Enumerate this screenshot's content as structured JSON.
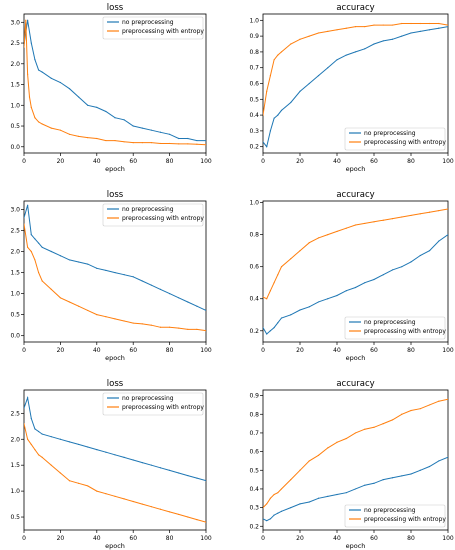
{
  "colors": {
    "no_preprocessing": "#1f77b4",
    "preprocessing_with_entropy": "#ff7f0e"
  },
  "chart_data": [
    {
      "type": "line",
      "title": "loss",
      "xlabel": "epoch",
      "ylabel": "",
      "xlim": [
        0,
        100
      ],
      "ylim": [
        -0.15,
        3.2
      ],
      "xticks": [
        0,
        20,
        40,
        60,
        80,
        100
      ],
      "yticks": [
        0.0,
        0.5,
        1.0,
        1.5,
        2.0,
        2.5,
        3.0
      ],
      "ytick_labels": [
        "0.0",
        "0.5",
        "1.0",
        "1.5",
        "2.0",
        "2.5",
        "3.0"
      ],
      "legend": "top-right",
      "series": [
        {
          "name": "no preprocessing",
          "color": "#1f77b4",
          "x": [
            0,
            2,
            4,
            6,
            8,
            10,
            15,
            20,
            25,
            30,
            35,
            40,
            45,
            50,
            55,
            60,
            65,
            70,
            75,
            80,
            85,
            90,
            95,
            100
          ],
          "y": [
            2.45,
            3.05,
            2.5,
            2.1,
            1.85,
            1.8,
            1.65,
            1.55,
            1.4,
            1.2,
            1.0,
            0.95,
            0.85,
            0.7,
            0.65,
            0.5,
            0.45,
            0.4,
            0.35,
            0.3,
            0.2,
            0.2,
            0.15,
            0.15
          ]
        },
        {
          "name": "preprocessing with entropy",
          "color": "#ff7f0e",
          "x": [
            0,
            1,
            2,
            3,
            4,
            6,
            8,
            10,
            15,
            20,
            25,
            30,
            35,
            40,
            45,
            50,
            55,
            60,
            65,
            70,
            75,
            80,
            85,
            90,
            95,
            100
          ],
          "y": [
            2.4,
            3.05,
            1.75,
            1.2,
            0.95,
            0.7,
            0.6,
            0.55,
            0.45,
            0.4,
            0.3,
            0.25,
            0.22,
            0.2,
            0.15,
            0.15,
            0.12,
            0.1,
            0.1,
            0.1,
            0.08,
            0.08,
            0.07,
            0.07,
            0.06,
            0.05
          ]
        }
      ]
    },
    {
      "type": "line",
      "title": "accuracy",
      "xlabel": "epoch",
      "ylabel": "",
      "xlim": [
        0,
        100
      ],
      "ylim": [
        0.16,
        1.04
      ],
      "xticks": [
        0,
        20,
        40,
        60,
        80,
        100
      ],
      "yticks": [
        0.2,
        0.3,
        0.4,
        0.5,
        0.6,
        0.7,
        0.8,
        0.9,
        1.0
      ],
      "ytick_labels": [
        "0.2",
        "0.3",
        "0.4",
        "0.5",
        "0.6",
        "0.7",
        "0.8",
        "0.9",
        "1.0"
      ],
      "legend": "bottom-right",
      "series": [
        {
          "name": "no preprocessing",
          "color": "#1f77b4",
          "x": [
            0,
            2,
            4,
            6,
            8,
            10,
            15,
            20,
            25,
            30,
            35,
            40,
            45,
            50,
            55,
            60,
            65,
            70,
            75,
            80,
            85,
            90,
            95,
            100
          ],
          "y": [
            0.23,
            0.2,
            0.3,
            0.38,
            0.4,
            0.43,
            0.48,
            0.55,
            0.6,
            0.65,
            0.7,
            0.75,
            0.78,
            0.8,
            0.82,
            0.85,
            0.87,
            0.88,
            0.9,
            0.92,
            0.93,
            0.94,
            0.95,
            0.96
          ]
        },
        {
          "name": "preprocessing with entropy",
          "color": "#ff7f0e",
          "x": [
            0,
            2,
            4,
            6,
            8,
            10,
            15,
            20,
            25,
            30,
            35,
            40,
            45,
            50,
            55,
            60,
            65,
            70,
            75,
            80,
            85,
            90,
            95,
            100
          ],
          "y": [
            0.4,
            0.55,
            0.65,
            0.75,
            0.78,
            0.8,
            0.85,
            0.88,
            0.9,
            0.92,
            0.93,
            0.94,
            0.95,
            0.96,
            0.96,
            0.97,
            0.97,
            0.97,
            0.98,
            0.98,
            0.98,
            0.98,
            0.98,
            0.97
          ]
        }
      ]
    },
    {
      "type": "line",
      "title": "loss",
      "xlabel": "epoch",
      "ylabel": "",
      "xlim": [
        0,
        100
      ],
      "ylim": [
        -0.15,
        3.2
      ],
      "xticks": [
        0,
        20,
        40,
        60,
        80,
        100
      ],
      "yticks": [
        0.0,
        0.5,
        1.0,
        1.5,
        2.0,
        2.5,
        3.0
      ],
      "ytick_labels": [
        "0.0",
        "0.5",
        "1.0",
        "1.5",
        "2.0",
        "2.5",
        "3.0"
      ],
      "legend": "top-right",
      "series": [
        {
          "name": "no preprocessing",
          "color": "#1f77b4",
          "x": [
            0,
            2,
            4,
            6,
            8,
            10,
            15,
            20,
            25,
            30,
            35,
            40,
            45,
            50,
            55,
            60,
            65,
            70,
            75,
            80,
            85,
            90,
            95,
            100
          ],
          "y": [
            2.8,
            3.1,
            2.4,
            2.3,
            2.2,
            2.1,
            2.0,
            1.9,
            1.8,
            1.75,
            1.7,
            1.6,
            1.55,
            1.5,
            1.45,
            1.4,
            1.3,
            1.2,
            1.1,
            1.0,
            0.9,
            0.8,
            0.7,
            0.6
          ]
        },
        {
          "name": "preprocessing with entropy",
          "color": "#ff7f0e",
          "x": [
            0,
            2,
            4,
            6,
            8,
            10,
            15,
            20,
            25,
            30,
            35,
            40,
            45,
            50,
            55,
            60,
            65,
            70,
            75,
            80,
            85,
            90,
            95,
            100
          ],
          "y": [
            2.65,
            2.1,
            2.0,
            1.8,
            1.5,
            1.3,
            1.1,
            0.9,
            0.8,
            0.7,
            0.6,
            0.5,
            0.45,
            0.4,
            0.35,
            0.3,
            0.28,
            0.25,
            0.2,
            0.2,
            0.18,
            0.15,
            0.15,
            0.12
          ]
        }
      ]
    },
    {
      "type": "line",
      "title": "accuracy",
      "xlabel": "epoch",
      "ylabel": "",
      "xlim": [
        0,
        100
      ],
      "ylim": [
        0.13,
        1.01
      ],
      "xticks": [
        0,
        20,
        40,
        60,
        80,
        100
      ],
      "yticks": [
        0.2,
        0.4,
        0.6,
        0.8,
        1.0
      ],
      "ytick_labels": [
        "0.2",
        "0.4",
        "0.6",
        "0.8",
        "1.0"
      ],
      "legend": "bottom-right",
      "series": [
        {
          "name": "no preprocessing",
          "color": "#1f77b4",
          "x": [
            0,
            2,
            4,
            6,
            8,
            10,
            15,
            20,
            25,
            30,
            35,
            40,
            45,
            50,
            55,
            60,
            65,
            70,
            75,
            80,
            85,
            90,
            95,
            100
          ],
          "y": [
            0.22,
            0.18,
            0.2,
            0.22,
            0.25,
            0.28,
            0.3,
            0.33,
            0.35,
            0.38,
            0.4,
            0.42,
            0.45,
            0.47,
            0.5,
            0.52,
            0.55,
            0.58,
            0.6,
            0.63,
            0.67,
            0.7,
            0.76,
            0.8
          ]
        },
        {
          "name": "preprocessing with entropy",
          "color": "#ff7f0e",
          "x": [
            0,
            2,
            4,
            6,
            8,
            10,
            15,
            20,
            25,
            30,
            35,
            40,
            45,
            50,
            55,
            60,
            65,
            70,
            75,
            80,
            85,
            90,
            95,
            100
          ],
          "y": [
            0.41,
            0.4,
            0.45,
            0.5,
            0.55,
            0.6,
            0.65,
            0.7,
            0.75,
            0.78,
            0.8,
            0.82,
            0.84,
            0.86,
            0.87,
            0.88,
            0.89,
            0.9,
            0.91,
            0.92,
            0.93,
            0.94,
            0.95,
            0.96
          ]
        }
      ]
    },
    {
      "type": "line",
      "title": "loss",
      "xlabel": "epoch",
      "ylabel": "",
      "xlim": [
        0,
        100
      ],
      "ylim": [
        0.25,
        2.95
      ],
      "xticks": [
        0,
        20,
        40,
        60,
        80,
        100
      ],
      "yticks": [
        0.5,
        1.0,
        1.5,
        2.0,
        2.5
      ],
      "ytick_labels": [
        "0.5",
        "1.0",
        "1.5",
        "2.0",
        "2.5"
      ],
      "legend": "top-right",
      "series": [
        {
          "name": "no preprocessing",
          "color": "#1f77b4",
          "x": [
            0,
            2,
            4,
            6,
            8,
            10,
            15,
            20,
            25,
            30,
            35,
            40,
            45,
            50,
            55,
            60,
            65,
            70,
            75,
            80,
            85,
            90,
            95,
            100
          ],
          "y": [
            2.6,
            2.8,
            2.4,
            2.2,
            2.15,
            2.1,
            2.05,
            2.0,
            1.95,
            1.9,
            1.85,
            1.8,
            1.75,
            1.7,
            1.65,
            1.6,
            1.55,
            1.5,
            1.45,
            1.4,
            1.35,
            1.3,
            1.25,
            1.2
          ]
        },
        {
          "name": "preprocessing with entropy",
          "color": "#ff7f0e",
          "x": [
            0,
            2,
            4,
            6,
            8,
            10,
            15,
            20,
            25,
            30,
            35,
            40,
            45,
            50,
            55,
            60,
            65,
            70,
            75,
            80,
            85,
            90,
            95,
            100
          ],
          "y": [
            2.3,
            2.0,
            1.9,
            1.8,
            1.7,
            1.65,
            1.5,
            1.35,
            1.2,
            1.15,
            1.1,
            1.0,
            0.95,
            0.9,
            0.85,
            0.8,
            0.75,
            0.7,
            0.65,
            0.6,
            0.55,
            0.5,
            0.45,
            0.4
          ]
        }
      ]
    },
    {
      "type": "line",
      "title": "accuracy",
      "xlabel": "epoch",
      "ylabel": "",
      "xlim": [
        0,
        100
      ],
      "ylim": [
        0.18,
        0.93
      ],
      "xticks": [
        0,
        20,
        40,
        60,
        80,
        100
      ],
      "yticks": [
        0.2,
        0.3,
        0.4,
        0.5,
        0.6,
        0.7,
        0.8,
        0.9
      ],
      "ytick_labels": [
        "0.2",
        "0.3",
        "0.4",
        "0.5",
        "0.6",
        "0.7",
        "0.8",
        "0.9"
      ],
      "legend": "bottom-right",
      "series": [
        {
          "name": "no preprocessing",
          "color": "#1f77b4",
          "x": [
            0,
            2,
            4,
            6,
            8,
            10,
            15,
            20,
            25,
            30,
            35,
            40,
            45,
            50,
            55,
            60,
            65,
            70,
            75,
            80,
            85,
            90,
            95,
            100
          ],
          "y": [
            0.24,
            0.23,
            0.24,
            0.26,
            0.27,
            0.28,
            0.3,
            0.32,
            0.33,
            0.35,
            0.36,
            0.37,
            0.38,
            0.4,
            0.42,
            0.43,
            0.45,
            0.46,
            0.47,
            0.48,
            0.5,
            0.52,
            0.55,
            0.57
          ]
        },
        {
          "name": "preprocessing with entropy",
          "color": "#ff7f0e",
          "x": [
            0,
            2,
            4,
            6,
            8,
            10,
            15,
            20,
            25,
            30,
            35,
            40,
            45,
            50,
            55,
            60,
            65,
            70,
            75,
            80,
            85,
            90,
            95,
            100
          ],
          "y": [
            0.3,
            0.32,
            0.35,
            0.37,
            0.38,
            0.4,
            0.45,
            0.5,
            0.55,
            0.58,
            0.62,
            0.65,
            0.67,
            0.7,
            0.72,
            0.73,
            0.75,
            0.77,
            0.8,
            0.82,
            0.83,
            0.85,
            0.87,
            0.88
          ]
        }
      ]
    }
  ]
}
